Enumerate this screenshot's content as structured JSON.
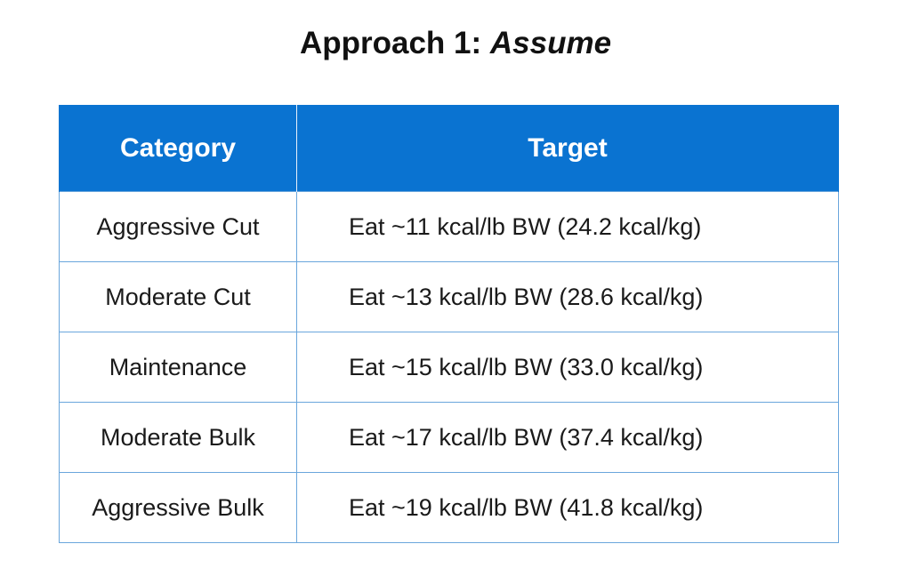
{
  "title": {
    "prefix": "Approach 1: ",
    "emphasis": "Assume"
  },
  "table": {
    "headers": [
      "Category",
      "Target"
    ],
    "rows": [
      {
        "category": "Aggressive Cut",
        "target": "Eat ~11 kcal/lb BW (24.2 kcal/kg)"
      },
      {
        "category": "Moderate Cut",
        "target": "Eat ~13 kcal/lb BW (28.6 kcal/kg)"
      },
      {
        "category": "Maintenance",
        "target": "Eat ~15 kcal/lb BW (33.0 kcal/kg)"
      },
      {
        "category": "Moderate Bulk",
        "target": "Eat ~17 kcal/lb BW (37.4 kcal/kg)"
      },
      {
        "category": "Aggressive Bulk",
        "target": "Eat ~19 kcal/lb BW (41.8 kcal/kg)"
      }
    ]
  },
  "colors": {
    "header_background": "#0a73d1",
    "header_text": "#ffffff",
    "grid_border": "#6aa6dc"
  }
}
